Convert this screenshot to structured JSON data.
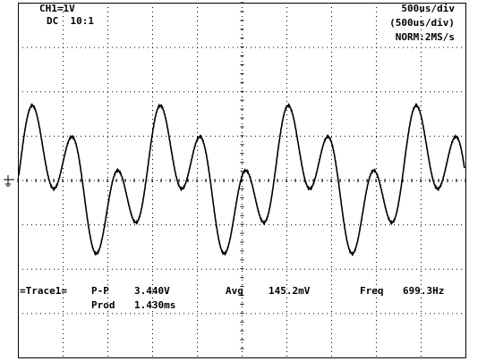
{
  "header": {
    "channel": "CH1=1V",
    "coupling": "DC  10:1",
    "timebase": "500us/div",
    "timebase_delayed": "(500us/div)",
    "mode": "NORM:2MS/s"
  },
  "measurements": {
    "trace": "=Trace1=",
    "pp_label": "P-P",
    "pp_value": "3.440V",
    "avg_label": "Avg",
    "avg_value": "145.2mV",
    "freq_label": "Freq",
    "freq_value": "699.3Hz",
    "period_label": "Prod",
    "period_value": "1.430ms"
  }
}
